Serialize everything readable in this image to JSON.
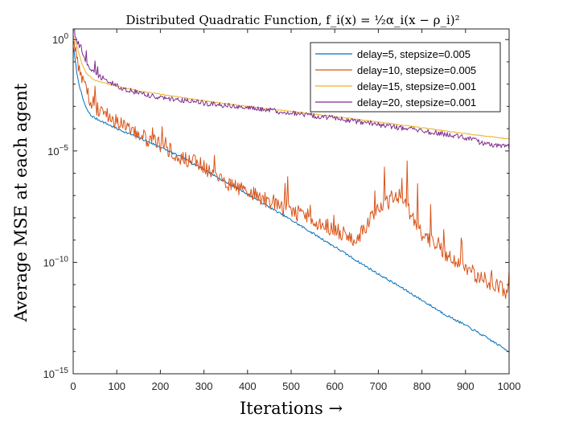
{
  "chart_data": {
    "type": "line",
    "title": "Distributed Quadratic Function, f_i(x) = ½α_i(x − ρ_i)²",
    "xlabel": "Iterations →",
    "ylabel": "Average MSE at each agent",
    "yscale": "log",
    "xlim": [
      0,
      1000
    ],
    "ylim": [
      1e-15,
      3
    ],
    "x_ticks": [
      0,
      100,
      200,
      300,
      400,
      500,
      600,
      700,
      800,
      900,
      1000
    ],
    "y_ticks": [
      {
        "value": 1,
        "base": "10",
        "exp": "0"
      },
      {
        "value": 1e-05,
        "base": "10",
        "exp": "−5"
      },
      {
        "value": 1e-10,
        "base": "10",
        "exp": "−10"
      },
      {
        "value": 1e-15,
        "base": "10",
        "exp": "−15"
      }
    ],
    "grid": false,
    "legend_position": "top-right",
    "series": [
      {
        "name": "delay=5, stepsize=0.005",
        "color": "#0072BD",
        "x": [
          0,
          5,
          10,
          20,
          30,
          40,
          50,
          100,
          150,
          200,
          250,
          300,
          350,
          400,
          450,
          500,
          550,
          600,
          650,
          700,
          750,
          800,
          850,
          900,
          950,
          1000
        ],
        "y": [
          0.5,
          0.1,
          0.02,
          0.003,
          0.0008,
          0.0004,
          0.0003,
          0.0001,
          4e-05,
          1.5e-05,
          5e-06,
          1.5e-06,
          4e-07,
          1.2e-07,
          3e-08,
          8e-09,
          2e-09,
          5e-10,
          1.2e-10,
          3e-11,
          8e-12,
          2e-12,
          5e-13,
          1.5e-13,
          4e-14,
          1e-14
        ]
      },
      {
        "name": "delay=10, stepsize=0.005",
        "color": "#D95319",
        "x": [
          0,
          5,
          10,
          20,
          30,
          40,
          50,
          100,
          150,
          200,
          230,
          250,
          300,
          350,
          400,
          450,
          500,
          550,
          600,
          650,
          700,
          750,
          800,
          850,
          900,
          950,
          1000
        ],
        "y": [
          0.8,
          0.3,
          0.1,
          0.02,
          0.005,
          0.002,
          0.001,
          0.0002,
          5e-05,
          2e-05,
          8e-06,
          5e-06,
          2e-06,
          4e-07,
          1.5e-07,
          5e-08,
          2e-08,
          8e-09,
          3e-09,
          1e-09,
          3e-08,
          1e-07,
          2e-09,
          3e-10,
          5e-11,
          1.5e-11,
          4e-12
        ]
      },
      {
        "name": "delay=15, stepsize=0.001",
        "color": "#EDB120",
        "x": [
          0,
          10,
          20,
          30,
          40,
          50,
          100,
          150,
          200,
          300,
          400,
          500,
          600,
          700,
          800,
          900,
          1000
        ],
        "y": [
          1.5,
          0.4,
          0.08,
          0.03,
          0.02,
          0.015,
          0.008,
          0.005,
          0.0035,
          0.0018,
          0.001,
          0.0006,
          0.00035,
          0.0002,
          0.00011,
          6e-05,
          3.5e-05
        ]
      },
      {
        "name": "delay=20, stepsize=0.001",
        "color": "#7E2F8E",
        "x": [
          0,
          10,
          20,
          30,
          40,
          50,
          100,
          150,
          200,
          300,
          400,
          500,
          600,
          700,
          800,
          900,
          950,
          1000
        ],
        "y": [
          2.0,
          0.8,
          0.3,
          0.1,
          0.05,
          0.03,
          0.008,
          0.004,
          0.0025,
          0.0014,
          0.0009,
          0.0005,
          0.0003,
          0.00015,
          8e-05,
          4e-05,
          2e-05,
          1.5e-05
        ]
      }
    ]
  }
}
